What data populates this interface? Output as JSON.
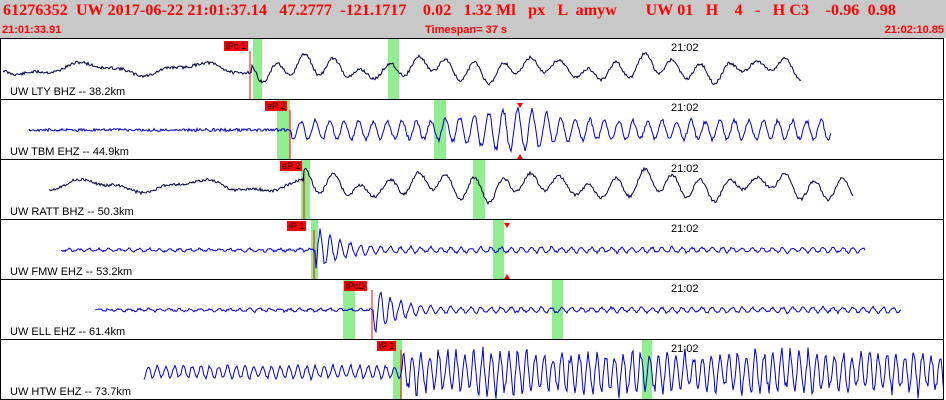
{
  "header": {
    "event_line": "61276352  UW 2017-06-22 21:01:37.14   47.2777  -121.1717    0.02   1.32 Ml   px   L  amyw       UW 01   H    4   -   H C3    -0.96  0.98",
    "time_start": "21:01:33.91",
    "timespan": "Timespan=  37 s",
    "time_end": "21:02:10.85"
  },
  "colors": {
    "header_bg": "#c8c8c8",
    "header_text": "#ff0000",
    "green_band": "#90ee90",
    "pick": "#ff0000",
    "blue_trace": "#0000cc",
    "dark_trace": "#000044"
  },
  "panels": [
    {
      "label": "UW LTY BHZ -- 38.2km",
      "tick": "21:02",
      "pick": "iPc 1",
      "color": "dark"
    },
    {
      "label": "UW TBM EHZ -- 44.9km",
      "tick": "21:02",
      "pick": "eP 2",
      "color": "blue"
    },
    {
      "label": "UW RATT BHZ -- 50.3km",
      "tick": "21:02",
      "pick": "eP 2",
      "color": "dark"
    },
    {
      "label": "UW FMW EHZ -- 53.2km",
      "tick": "21:02",
      "pick": "iP 1",
      "color": "blue"
    },
    {
      "label": "UW ELL EHZ -- 61.4km",
      "tick": "21:02",
      "pick": "iPcD",
      "color": "blue"
    },
    {
      "label": "UW HTW EHZ -- 73.7km",
      "tick": "21:02",
      "pick": "iP 1",
      "color": "blue"
    }
  ]
}
